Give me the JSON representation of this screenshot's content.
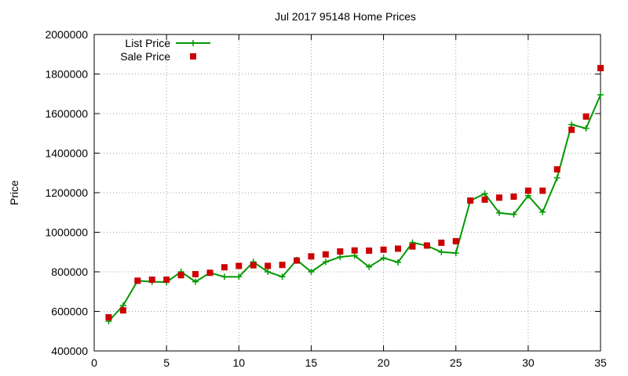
{
  "chart_data": {
    "type": "line",
    "title": "Jul 2017 95148 Home Prices",
    "xlabel": "",
    "ylabel": "Price",
    "xlim": [
      0,
      35
    ],
    "ylim": [
      400000,
      2000000
    ],
    "x_ticks": [
      0,
      5,
      10,
      15,
      20,
      25,
      30,
      35
    ],
    "y_ticks": [
      400000,
      600000,
      800000,
      1000000,
      1200000,
      1400000,
      1600000,
      1800000,
      2000000
    ],
    "grid": true,
    "legend_position": "top-left",
    "series": [
      {
        "name": "List Price",
        "style": "line+cross",
        "color": "#009900",
        "x": [
          1,
          2,
          3,
          4,
          5,
          6,
          7,
          8,
          9,
          10,
          11,
          12,
          13,
          14,
          15,
          16,
          17,
          18,
          19,
          20,
          21,
          22,
          23,
          24,
          25,
          26,
          27,
          28,
          29,
          30,
          31,
          32,
          33,
          34,
          35
        ],
        "values": [
          550000,
          630000,
          755000,
          750000,
          748000,
          800000,
          750000,
          795000,
          775000,
          775000,
          850000,
          800000,
          775000,
          860000,
          800000,
          850000,
          875000,
          882000,
          825000,
          870000,
          848000,
          948000,
          932000,
          900000,
          895000,
          1160000,
          1195000,
          1098000,
          1090000,
          1185000,
          1102000,
          1275000,
          1545000,
          1525000,
          1695000
        ]
      },
      {
        "name": "Sale Price",
        "style": "square",
        "color": "#cc0000",
        "x": [
          1,
          2,
          3,
          4,
          5,
          6,
          7,
          8,
          9,
          10,
          11,
          12,
          13,
          14,
          15,
          16,
          17,
          18,
          19,
          20,
          21,
          22,
          23,
          24,
          25,
          26,
          27,
          28,
          29,
          30,
          31,
          32,
          33,
          34,
          35
        ],
        "values": [
          570000,
          605000,
          755000,
          760000,
          760000,
          783000,
          788000,
          795000,
          823000,
          830000,
          833000,
          830000,
          835000,
          857000,
          878000,
          888000,
          903000,
          908000,
          907000,
          912000,
          917000,
          928000,
          933000,
          947000,
          955000,
          1160000,
          1165000,
          1175000,
          1180000,
          1210000,
          1210000,
          1318000,
          1518000,
          1585000,
          1830000
        ]
      }
    ]
  }
}
